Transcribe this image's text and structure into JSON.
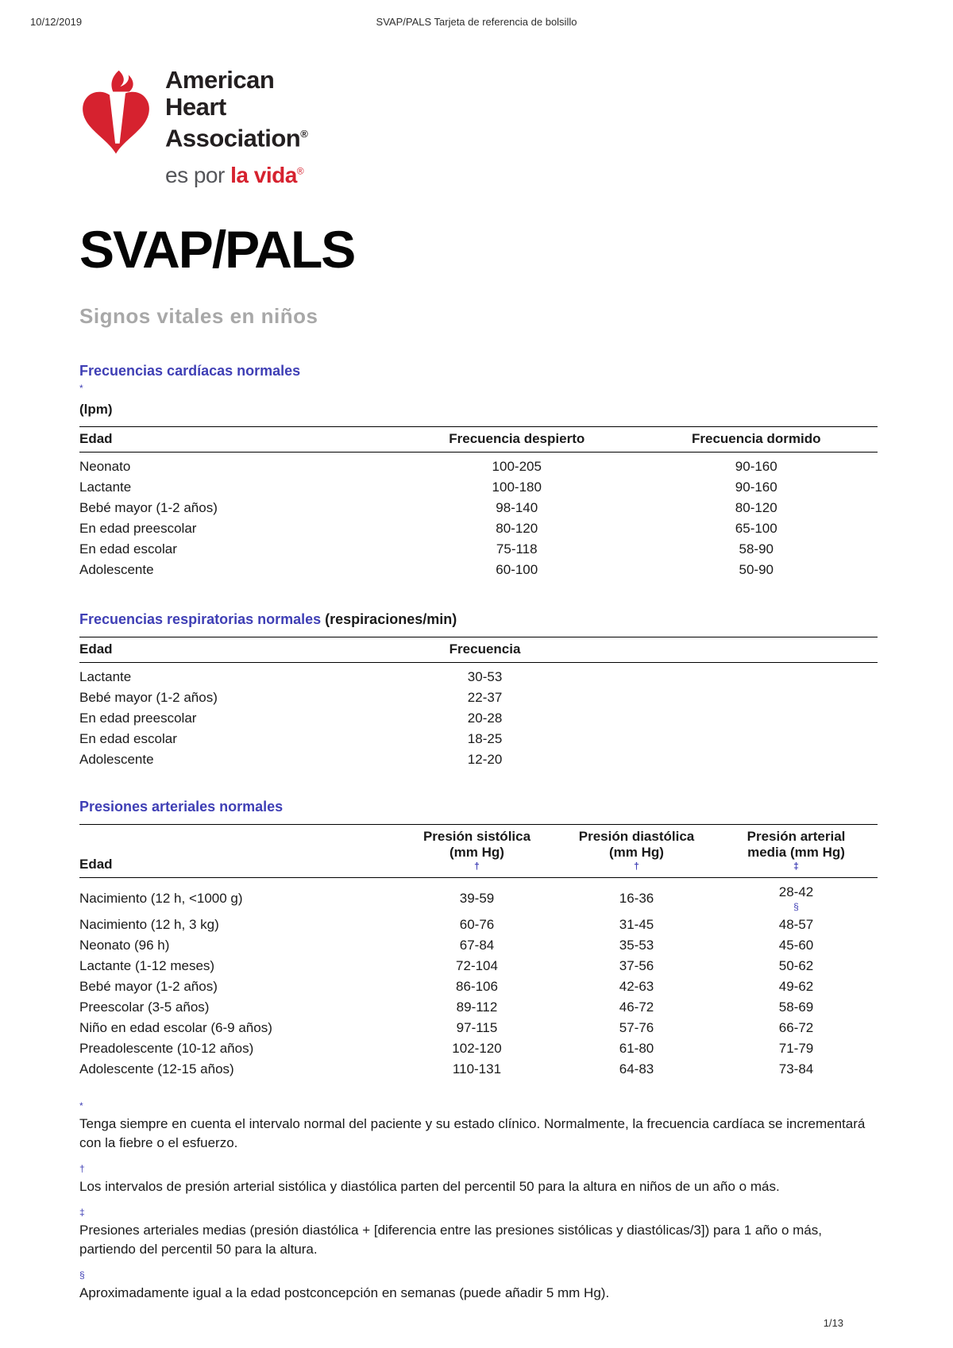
{
  "colors": {
    "brand_red": "#d6222f",
    "heading_purple": "#3f3fb5",
    "subtitle_gray": "#a8a8a8",
    "text": "#1a1a1a"
  },
  "print_header": {
    "date": "10/12/2019",
    "title": "SVAP/PALS Tarjeta de referencia de bolsillo"
  },
  "print_footer": {
    "page": "1/13"
  },
  "logo": {
    "name_line1": "American",
    "name_line2": "Heart",
    "name_line3": "Association",
    "registered": "®",
    "tagline_plain": "es por ",
    "tagline_accent": "la vida",
    "tagline_registered": "®"
  },
  "title": "SVAP/PALS",
  "subtitle": "Signos vitales en niños",
  "sections": {
    "heart_rate": {
      "title": "Frecuencias cardíacas normales",
      "marker": "*",
      "unit_line": "(lpm)"
    },
    "respiratory": {
      "title": "Frecuencias respiratorias normales",
      "title_suffix": " (respiraciones/min)"
    },
    "blood_pressure": {
      "title": "Presiones arteriales normales"
    }
  },
  "tables": {
    "heart_rate": {
      "columns": [
        "Edad",
        "Frecuencia despierto",
        "Frecuencia dormido"
      ],
      "rows": [
        [
          "Neonato",
          "100-205",
          "90-160"
        ],
        [
          "Lactante",
          "100-180",
          "90-160"
        ],
        [
          "Bebé mayor (1-2 años)",
          "98-140",
          "80-120"
        ],
        [
          "En edad preescolar",
          "80-120",
          "65-100"
        ],
        [
          "En edad escolar",
          "75-118",
          "58-90"
        ],
        [
          "Adolescente",
          "60-100",
          "50-90"
        ]
      ]
    },
    "respiratory": {
      "columns": [
        "Edad",
        "Frecuencia",
        ""
      ],
      "rows": [
        [
          "Lactante",
          "30-53",
          ""
        ],
        [
          "Bebé mayor (1-2 años)",
          "22-37",
          ""
        ],
        [
          "En edad preescolar",
          "20-28",
          ""
        ],
        [
          "En edad escolar",
          "18-25",
          ""
        ],
        [
          "Adolescente",
          "12-20",
          ""
        ]
      ]
    },
    "blood_pressure": {
      "columns": [
        "Edad",
        {
          "text": "Presión sistólica\n(mm Hg)",
          "marker": "†"
        },
        {
          "text": "Presión diastólica\n(mm Hg)",
          "marker": "†"
        },
        {
          "text": "Presión arterial\nmedia (mm Hg)",
          "marker": "‡"
        }
      ],
      "rows": [
        [
          "Nacimiento (12 h, <1000 g)",
          "39-59",
          "16-36",
          {
            "text": "28-42",
            "marker": "§"
          }
        ],
        [
          "Nacimiento (12 h, 3 kg)",
          "60-76",
          "31-45",
          "48-57"
        ],
        [
          "Neonato (96 h)",
          "67-84",
          "35-53",
          "45-60"
        ],
        [
          "Lactante (1-12 meses)",
          "72-104",
          "37-56",
          "50-62"
        ],
        [
          "Bebé mayor (1-2 años)",
          "86-106",
          "42-63",
          "49-62"
        ],
        [
          "Preescolar (3-5 años)",
          "89-112",
          "46-72",
          "58-69"
        ],
        [
          "Niño en edad escolar (6-9 años)",
          "97-115",
          "57-76",
          "66-72"
        ],
        [
          "Preadolescente (10-12 años)",
          "102-120",
          "61-80",
          "71-79"
        ],
        [
          "Adolescente (12-15 años)",
          "110-131",
          "64-83",
          "73-84"
        ]
      ]
    }
  },
  "footnotes": [
    {
      "marker": "*",
      "text": "Tenga siempre en cuenta el intervalo normal del paciente y su estado clínico. Normalmente, la frecuencia cardíaca se incrementará con la fiebre o el esfuerzo."
    },
    {
      "marker": "†",
      "text": "Los intervalos de presión arterial sistólica y diastólica parten del percentil 50 para la altura en niños de un año o más."
    },
    {
      "marker": "‡",
      "text": "Presiones arteriales medias (presión diastólica + [diferencia entre las presiones sistólicas y diastólicas/3]) para 1 año o más, partiendo del percentil 50 para la altura."
    },
    {
      "marker": "§",
      "text": "Aproximadamente igual a la edad postconcepción en semanas (puede añadir 5 mm Hg)."
    }
  ]
}
